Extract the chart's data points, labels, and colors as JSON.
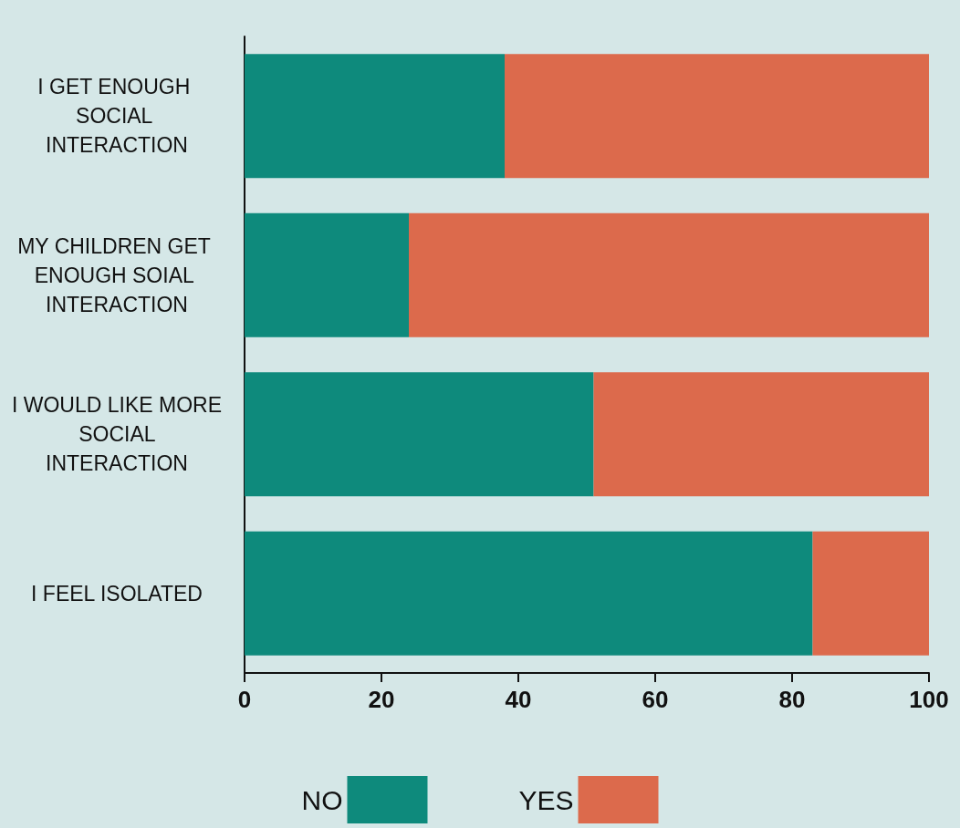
{
  "chart_data": {
    "type": "bar",
    "orientation": "horizontal",
    "stacked": true,
    "categories": [
      "I GET ENOUGH SOCIAL INTERACTION",
      "MY CHILDREN GET ENOUGH SOIAL INTERACTION",
      "I WOULD LIKE MORE SOCIAL INTERACTION",
      "I FEEL ISOLATED"
    ],
    "series": [
      {
        "name": "NO",
        "color": "#0e8a7c",
        "values": [
          38,
          24,
          51,
          83
        ]
      },
      {
        "name": "YES",
        "color": "#dc6a4c",
        "values": [
          62,
          76,
          49,
          17
        ]
      }
    ],
    "xlim": [
      0,
      100
    ],
    "xticks": [
      0,
      20,
      40,
      60,
      80,
      100
    ],
    "grid": false,
    "legend": "bottom"
  }
}
